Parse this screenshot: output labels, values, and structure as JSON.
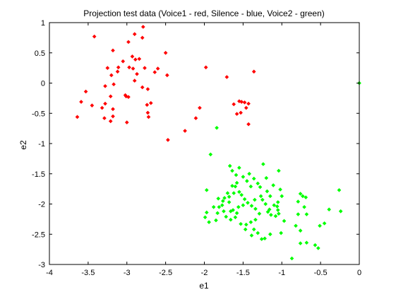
{
  "chart_data": {
    "type": "scatter",
    "title": "Projection test data (Voice1 - red, Silence - blue, Voice2 - green)",
    "xlabel": "e1",
    "ylabel": "e2",
    "xlim": [
      -4,
      0
    ],
    "ylim": [
      -3,
      1
    ],
    "xticks": [
      -4,
      -3.5,
      -3,
      -2.5,
      -2,
      -1.5,
      -1,
      -0.5,
      0
    ],
    "yticks": [
      -3,
      -2.5,
      -2,
      -1.5,
      -1,
      -0.5,
      0,
      0.5,
      1
    ],
    "grid": false,
    "marker": "diamond",
    "series": [
      {
        "color": "#ff0000",
        "points": [
          [
            -3.42,
            0.77
          ],
          [
            -3.18,
            0.54
          ],
          [
            -3.05,
            0.36
          ],
          [
            -3.25,
            0.25
          ],
          [
            -2.98,
            0.68
          ],
          [
            -2.9,
            0.81
          ],
          [
            -2.79,
            0.93
          ],
          [
            -2.8,
            0.75
          ],
          [
            -2.93,
            0.44
          ],
          [
            -2.89,
            0.39
          ],
          [
            -2.84,
            0.4
          ],
          [
            -2.97,
            0.26
          ],
          [
            -2.92,
            0.24
          ],
          [
            -3.11,
            0.26
          ],
          [
            -3.12,
            0.19
          ],
          [
            -2.87,
            0.15
          ],
          [
            -2.9,
            0.04
          ],
          [
            -2.77,
            0.25
          ],
          [
            -2.64,
            0.18
          ],
          [
            -2.6,
            0.24
          ],
          [
            -2.5,
            0.5
          ],
          [
            -2.48,
            0.13
          ],
          [
            -3.2,
            0.13
          ],
          [
            -3.17,
            -0.02
          ],
          [
            -2.8,
            -0.07
          ],
          [
            -2.73,
            -0.1
          ],
          [
            -3.02,
            -0.2
          ],
          [
            -2.98,
            -0.23
          ],
          [
            -3.01,
            -0.22
          ],
          [
            -3.28,
            -0.05
          ],
          [
            -3.21,
            -0.22
          ],
          [
            -2.74,
            -0.36
          ],
          [
            -2.69,
            -0.33
          ],
          [
            -3.53,
            -0.14
          ],
          [
            -3.59,
            -0.31
          ],
          [
            -3.45,
            -0.37
          ],
          [
            -3.32,
            -0.41
          ],
          [
            -3.28,
            -0.34
          ],
          [
            -3.64,
            -0.56
          ],
          [
            -3.18,
            -0.43
          ],
          [
            -3.18,
            -0.55
          ],
          [
            -3.29,
            -0.58
          ],
          [
            -3.21,
            -0.63
          ],
          [
            -3.0,
            -0.65
          ],
          [
            -2.73,
            -0.49
          ],
          [
            -2.72,
            -0.56
          ],
          [
            -2.47,
            -0.94
          ],
          [
            -2.25,
            -0.79
          ],
          [
            -2.11,
            -0.58
          ],
          [
            -2.06,
            -0.41
          ],
          [
            -1.98,
            0.26
          ],
          [
            -1.71,
            0.1
          ],
          [
            -1.36,
            0.19
          ],
          [
            -1.62,
            -0.35
          ],
          [
            -1.55,
            -0.3
          ],
          [
            -1.52,
            -0.31
          ],
          [
            -1.48,
            -0.32
          ],
          [
            -1.43,
            -0.34
          ],
          [
            -1.53,
            -0.49
          ],
          [
            -1.46,
            -0.41
          ],
          [
            -1.58,
            -0.51
          ],
          [
            -1.43,
            -0.68
          ]
        ]
      },
      {
        "color": "#00ff00",
        "points": [
          [
            0.0,
            0.0
          ],
          [
            -1.84,
            -0.74
          ],
          [
            -1.92,
            -1.18
          ],
          [
            -1.97,
            -1.77
          ],
          [
            -1.82,
            -1.91
          ],
          [
            -1.88,
            -2.05
          ],
          [
            -1.97,
            -2.14
          ],
          [
            -1.94,
            -2.3
          ],
          [
            -1.99,
            -2.22
          ],
          [
            -1.81,
            -2.05
          ],
          [
            -1.76,
            -1.95
          ],
          [
            -1.7,
            -1.82
          ],
          [
            -1.68,
            -1.88
          ],
          [
            -1.75,
            -2.12
          ],
          [
            -1.63,
            -2.1
          ],
          [
            -1.58,
            -2.15
          ],
          [
            -1.72,
            -2.21
          ],
          [
            -1.66,
            -2.26
          ],
          [
            -1.6,
            -2.22
          ],
          [
            -1.53,
            -2.33
          ],
          [
            -1.67,
            -1.37
          ],
          [
            -1.64,
            -1.45
          ],
          [
            -1.59,
            -1.52
          ],
          [
            -1.55,
            -1.4
          ],
          [
            -1.5,
            -1.55
          ],
          [
            -1.45,
            -1.62
          ],
          [
            -1.4,
            -1.71
          ],
          [
            -1.55,
            -1.8
          ],
          [
            -1.52,
            -1.85
          ],
          [
            -1.48,
            -1.92
          ],
          [
            -1.44,
            -1.98
          ],
          [
            -1.39,
            -2.03
          ],
          [
            -1.34,
            -2.08
          ],
          [
            -1.42,
            -1.5
          ],
          [
            -1.36,
            -1.58
          ],
          [
            -1.31,
            -1.66
          ],
          [
            -1.24,
            -1.34
          ],
          [
            -1.2,
            -1.57
          ],
          [
            -1.19,
            -1.79
          ],
          [
            -1.27,
            -1.87
          ],
          [
            -1.25,
            -1.93
          ],
          [
            -1.21,
            -2.0
          ],
          [
            -1.16,
            -2.09
          ],
          [
            -1.1,
            -2.02
          ],
          [
            -1.05,
            -1.97
          ],
          [
            -1.02,
            -1.76
          ],
          [
            -1.0,
            -1.87
          ],
          [
            -1.05,
            -2.1
          ],
          [
            -1.08,
            -2.2
          ],
          [
            -1.14,
            -2.18
          ],
          [
            -1.18,
            -2.13
          ],
          [
            -1.29,
            -2.16
          ],
          [
            -1.34,
            -2.26
          ],
          [
            -1.4,
            -2.3
          ],
          [
            -1.46,
            -2.34
          ],
          [
            -1.36,
            -2.42
          ],
          [
            -1.31,
            -2.48
          ],
          [
            -1.26,
            -2.58
          ],
          [
            -1.22,
            -2.57
          ],
          [
            -1.15,
            -2.5
          ],
          [
            -1.01,
            -2.48
          ],
          [
            -1.04,
            -2.16
          ],
          [
            -0.97,
            -2.28
          ],
          [
            -1.04,
            -1.45
          ],
          [
            -1.11,
            -1.69
          ],
          [
            -1.6,
            -1.71
          ],
          [
            -1.58,
            -1.65
          ],
          [
            -1.64,
            -1.7
          ],
          [
            -1.74,
            -1.9
          ],
          [
            -1.68,
            -1.97
          ],
          [
            -0.76,
            -1.83
          ],
          [
            -0.73,
            -1.87
          ],
          [
            -0.69,
            -1.89
          ],
          [
            -0.71,
            -2.05
          ],
          [
            -0.79,
            -1.96
          ],
          [
            -0.68,
            -2.17
          ],
          [
            -0.79,
            -2.17
          ],
          [
            -0.76,
            -2.44
          ],
          [
            -0.82,
            -2.36
          ],
          [
            -0.76,
            -2.65
          ],
          [
            -0.68,
            -2.64
          ],
          [
            -0.57,
            -2.68
          ],
          [
            -0.53,
            -2.73
          ],
          [
            -0.51,
            -2.36
          ],
          [
            -0.45,
            -2.32
          ],
          [
            -0.39,
            -2.09
          ],
          [
            -0.24,
            -2.12
          ],
          [
            -0.26,
            -1.77
          ],
          [
            -0.87,
            -2.9
          ],
          [
            -1.39,
            -2.52
          ],
          [
            -1.47,
            -2.42
          ],
          [
            -1.56,
            -2.05
          ],
          [
            -1.85,
            -2.27
          ],
          [
            -1.83,
            -2.15
          ],
          [
            -1.66,
            -2.12
          ],
          [
            -1.77,
            -2.02
          ],
          [
            -1.62,
            -1.82
          ],
          [
            -1.5,
            -2.02
          ],
          [
            -1.35,
            -1.93
          ],
          [
            -1.28,
            -1.72
          ],
          [
            -1.15,
            -1.87
          ],
          [
            -1.06,
            -2.04
          ]
        ]
      }
    ]
  }
}
